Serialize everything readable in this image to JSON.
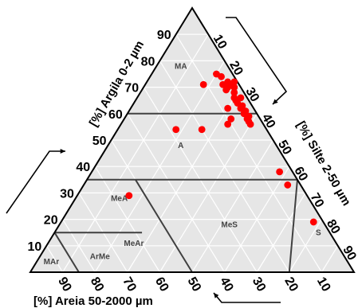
{
  "chart_data": {
    "type": "ternary-scatter",
    "axes": {
      "left": {
        "label": "[%] Argila 0-2 µm",
        "ticks": [
          "10",
          "20",
          "30",
          "40",
          "50",
          "60",
          "70",
          "80",
          "90"
        ]
      },
      "right": {
        "label": "[%] Silte 2-50 µm",
        "ticks": [
          "10",
          "20",
          "30",
          "40",
          "50",
          "60",
          "70",
          "80",
          "90"
        ]
      },
      "bottom": {
        "label": "[%] Areia 50-2000 µm",
        "ticks": [
          "90",
          "80",
          "70",
          "60",
          "50",
          "40",
          "30",
          "20",
          "10"
        ]
      }
    },
    "grid": true,
    "regions": [
      {
        "name": "MA"
      },
      {
        "name": "A"
      },
      {
        "name": "MeA"
      },
      {
        "name": "MeS"
      },
      {
        "name": "S"
      },
      {
        "name": "MeAr"
      },
      {
        "name": "ArMe"
      },
      {
        "name": "MAr"
      }
    ],
    "points": [
      {
        "clay": 71,
        "silt": 24
      },
      {
        "clay": 75,
        "silt": 20
      },
      {
        "clay": 74,
        "silt": 22
      },
      {
        "clay": 72,
        "silt": 25
      },
      {
        "clay": 70,
        "silt": 26
      },
      {
        "clay": 71,
        "silt": 27
      },
      {
        "clay": 72,
        "silt": 27
      },
      {
        "clay": 70,
        "silt": 28
      },
      {
        "clay": 69,
        "silt": 26
      },
      {
        "clay": 68,
        "silt": 29
      },
      {
        "clay": 66,
        "silt": 30
      },
      {
        "clay": 65,
        "silt": 31
      },
      {
        "clay": 66,
        "silt": 32
      },
      {
        "clay": 64,
        "silt": 32
      },
      {
        "clay": 63,
        "silt": 34
      },
      {
        "clay": 62,
        "silt": 34
      },
      {
        "clay": 61,
        "silt": 36
      },
      {
        "clay": 60,
        "silt": 36
      },
      {
        "clay": 59,
        "silt": 38
      },
      {
        "clay": 58,
        "silt": 38
      },
      {
        "clay": 57,
        "silt": 39
      },
      {
        "clay": 56,
        "silt": 40
      },
      {
        "clay": 62,
        "silt": 30
      },
      {
        "clay": 58,
        "silt": 33
      },
      {
        "clay": 56,
        "silt": 33
      },
      {
        "clay": 71,
        "silt": 18
      },
      {
        "clay": 54,
        "silt": 26
      },
      {
        "clay": 54,
        "silt": 18
      },
      {
        "clay": 38,
        "silt": 58
      },
      {
        "clay": 33,
        "silt": 63
      },
      {
        "clay": 29,
        "silt": 16
      },
      {
        "clay": 19,
        "silt": 78
      }
    ],
    "colors": {
      "point": "#ff0000",
      "plot": "#e6e6e6",
      "grid": "#ffffff",
      "boundary": "#404040"
    }
  }
}
